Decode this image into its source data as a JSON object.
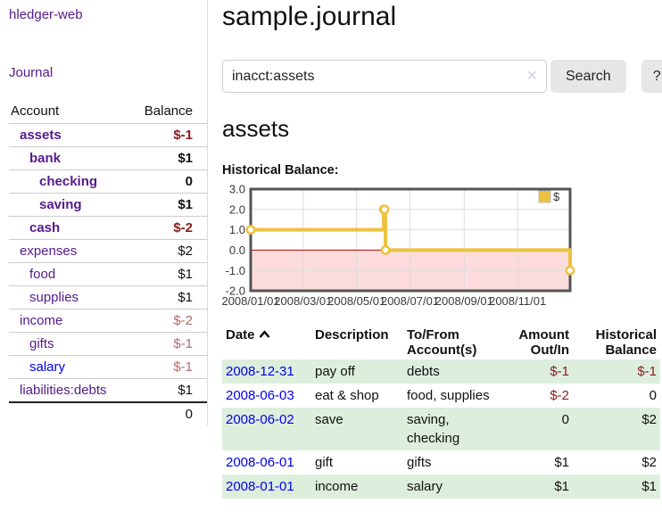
{
  "sidebar": {
    "app_title": "hledger-web",
    "journal_link": "Journal",
    "accounts": {
      "headers": {
        "account": "Account",
        "balance": "Balance"
      },
      "rows": [
        {
          "name": "assets",
          "balance": "$-1",
          "level": 1,
          "in_account": true,
          "negative": "strong"
        },
        {
          "name": "bank",
          "balance": "$1",
          "level": 2,
          "in_account": true,
          "negative": "none"
        },
        {
          "name": "checking",
          "balance": "0",
          "level": 3,
          "in_account": true,
          "negative": "none"
        },
        {
          "name": "saving",
          "balance": "$1",
          "level": 3,
          "in_account": true,
          "negative": "none"
        },
        {
          "name": "cash",
          "balance": "$-2",
          "level": 2,
          "in_account": true,
          "negative": "strong"
        },
        {
          "name": "expenses",
          "balance": "$2",
          "level": 1,
          "in_account": false,
          "negative": "none"
        },
        {
          "name": "food",
          "balance": "$1",
          "level": 2,
          "in_account": false,
          "negative": "none"
        },
        {
          "name": "supplies",
          "balance": "$1",
          "level": 2,
          "in_account": false,
          "negative": "none"
        },
        {
          "name": "income",
          "balance": "$-2",
          "level": 1,
          "in_account": false,
          "negative": "muted"
        },
        {
          "name": "gifts",
          "balance": "$-1",
          "level": 2,
          "in_account": false,
          "negative": "muted"
        },
        {
          "name": "salary",
          "balance": "$-1",
          "level": 2,
          "in_account": false,
          "negative": "muted"
        },
        {
          "name": "liabilities:debts",
          "balance": "$1",
          "level": 1,
          "in_account": false,
          "negative": "none"
        }
      ],
      "total": "0"
    }
  },
  "main": {
    "title": "sample.journal",
    "search": {
      "value": "inacct:assets",
      "clear_icon": "✕",
      "search_button": "Search",
      "help_button": "?"
    },
    "account_heading": "assets",
    "chart_label": "Historical Balance:"
  },
  "chart_data": {
    "type": "line",
    "step": true,
    "title": "Historical Balance",
    "x_axis_note": "days since 2008-01-01",
    "series": [
      {
        "name": "$",
        "color": "#edc240",
        "points": [
          [
            0,
            1
          ],
          [
            152,
            2
          ],
          [
            153,
            2
          ],
          [
            154,
            0
          ],
          [
            365,
            -1
          ]
        ],
        "point_dates": [
          "2008-01-01",
          "2008-06-01",
          "2008-06-02",
          "2008-06-03",
          "2008-12-31"
        ]
      }
    ],
    "xlim": [
      0,
      365
    ],
    "ylim": [
      -2,
      3
    ],
    "xticks": [
      {
        "v": 0,
        "label": "2008/01/01"
      },
      {
        "v": 60,
        "label": "2008/03/01"
      },
      {
        "v": 121,
        "label": "2008/05/01"
      },
      {
        "v": 182,
        "label": "2008/07/01"
      },
      {
        "v": 244,
        "label": "2008/09/01"
      },
      {
        "v": 305,
        "label": "2008/11/01"
      }
    ],
    "yticks": [
      {
        "v": 3,
        "label": "3.0"
      },
      {
        "v": 2,
        "label": "2.0"
      },
      {
        "v": 1,
        "label": "1.0"
      },
      {
        "v": 0,
        "label": "0.0"
      },
      {
        "v": -1,
        "label": "-1.0"
      },
      {
        "v": -2,
        "label": "-2.0"
      }
    ],
    "grid": true,
    "legend": {
      "label": "$",
      "position": "top-right"
    },
    "colors": {
      "series": "#edc240",
      "negative_region_fill": "#fcdcdc",
      "zero_line": "#bb0000",
      "plot_border": "#545454",
      "grid_line": "#dddddd",
      "tick_text": "#3a3a3a"
    }
  },
  "register": {
    "headers": {
      "date": "Date",
      "description": "Description",
      "accounts": "To/From Account(s)",
      "amount": "Amount Out/In",
      "balance": "Historical Balance"
    },
    "rows": [
      {
        "date": "2008-12-31",
        "description": "pay off",
        "accounts": "debts",
        "amount": "$-1",
        "balance": "$-1"
      },
      {
        "date": "2008-06-03",
        "description": "eat & shop",
        "accounts": "food, supplies",
        "amount": "$-2",
        "balance": "0"
      },
      {
        "date": "2008-06-02",
        "description": "save",
        "accounts": "saving, checking",
        "amount": "0",
        "balance": "$2"
      },
      {
        "date": "2008-06-01",
        "description": "gift",
        "accounts": "gifts",
        "amount": "$1",
        "balance": "$2"
      },
      {
        "date": "2008-01-01",
        "description": "income",
        "accounts": "salary",
        "amount": "$1",
        "balance": "$1"
      }
    ]
  }
}
